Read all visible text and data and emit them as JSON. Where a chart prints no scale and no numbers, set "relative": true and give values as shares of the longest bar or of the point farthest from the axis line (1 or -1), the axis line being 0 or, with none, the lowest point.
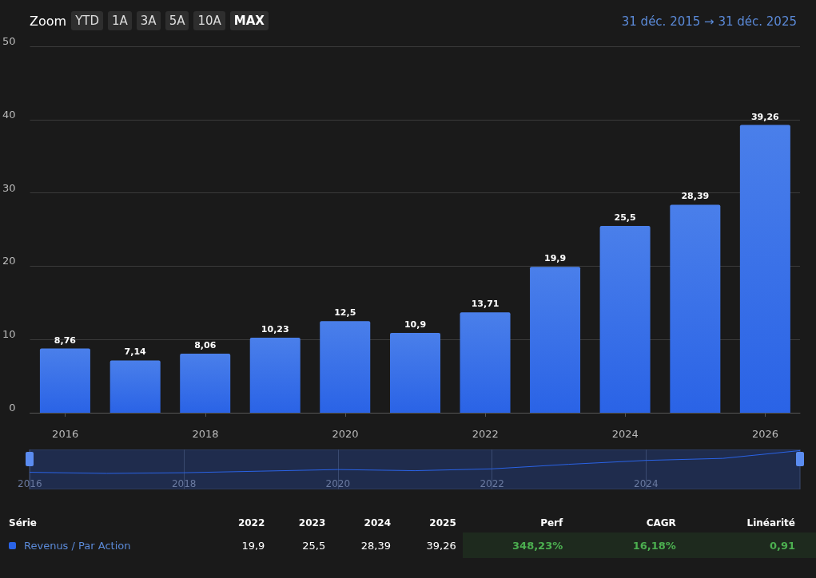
{
  "chart_data": [
    {
      "type": "bar",
      "x": [
        "2015-12-31",
        "2016-12-31",
        "2017-12-31",
        "2018-12-31",
        "2019-12-31",
        "2020-12-31",
        "2021-12-31",
        "2022-12-31",
        "2023-12-31",
        "2024-12-31",
        "2025-12-31"
      ],
      "series": [
        {
          "name": "Revenus / Par Action",
          "color": "#2a63e6",
          "values": [
            8.76,
            7.14,
            8.06,
            10.23,
            12.5,
            10.9,
            13.71,
            19.9,
            25.5,
            28.39,
            39.26
          ],
          "value_labels": [
            "8,76",
            "7,14",
            "8,06",
            "10,23",
            "12,5",
            "10,9",
            "13,71",
            "19,9",
            "25,5",
            "28,39",
            "39,26"
          ]
        }
      ],
      "xlim": [
        "2015-07-01",
        "2026-07-01"
      ],
      "xticks": [
        "2016",
        "2018",
        "2020",
        "2022",
        "2024",
        "2026"
      ],
      "ylim": [
        0,
        50
      ],
      "yticks": [
        0,
        10,
        20,
        30,
        40,
        50
      ],
      "grid": "y",
      "annotations": [
        "Zoom",
        "YTD",
        "1A",
        "3A",
        "5A",
        "10A",
        "MAX",
        "31 déc. 2015 → 31 déc. 2025",
        "Série",
        "2022",
        "2023",
        "2024",
        "2025",
        "Perf",
        "CAGR",
        "Linéarité",
        "348,23%",
        "16,18%",
        "0,91"
      ]
    },
    {
      "type": "line",
      "relative": true,
      "tick_labels": "x",
      "grid": "x",
      "x": [
        "2015-12-31",
        "2016-12-31",
        "2017-12-31",
        "2018-12-31",
        "2019-12-31",
        "2020-12-31",
        "2021-12-31",
        "2022-12-31",
        "2023-12-31",
        "2024-12-31",
        "2025-12-31"
      ],
      "series": [
        {
          "color": "#2a63e6",
          "values": [
            0.05,
            0,
            0.03,
            0.1,
            0.17,
            0.12,
            0.2,
            0.4,
            0.57,
            0.66,
            1
          ]
        }
      ],
      "xlim": [
        "2015-12-31",
        "2025-12-31"
      ],
      "xticks": [
        "2016",
        "2018",
        "2020",
        "2022",
        "2024"
      ]
    }
  ]
}
